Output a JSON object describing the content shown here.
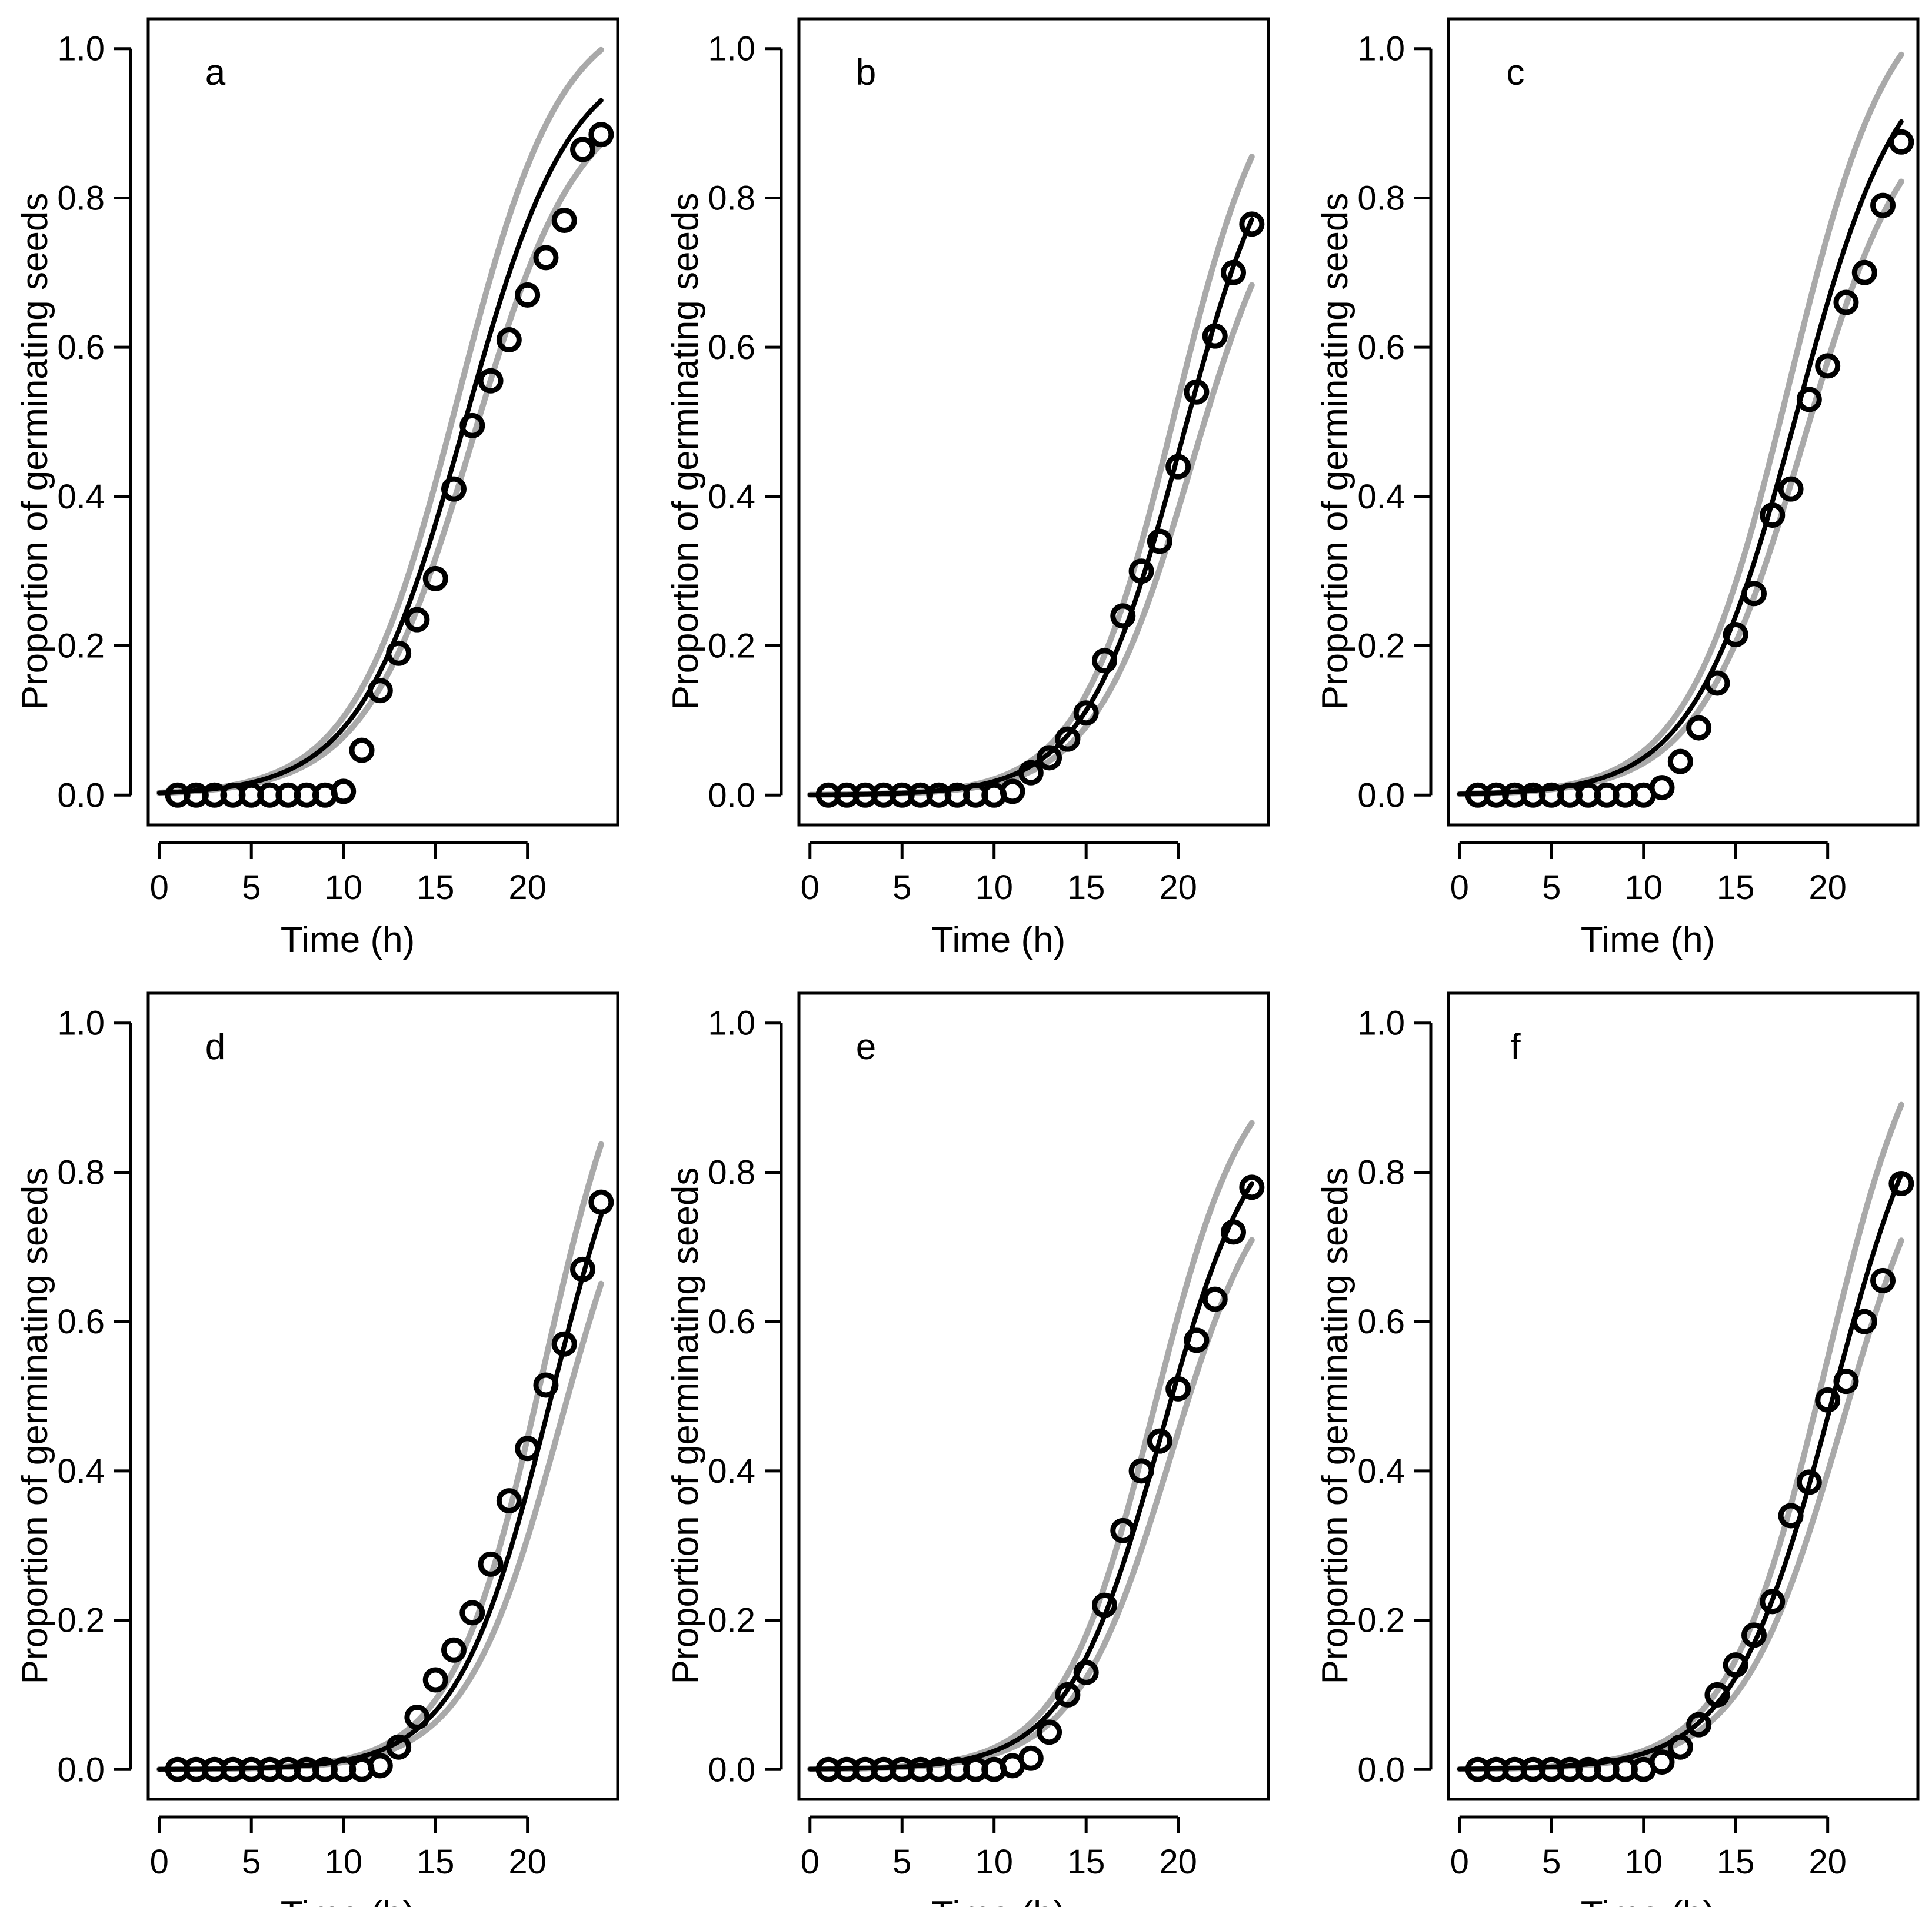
{
  "figure": {
    "colors": {
      "axis": "#000000",
      "fit": "#000000",
      "ci": "#a9a9a9",
      "points": "#000000",
      "background": "#ffffff"
    }
  },
  "chart_data": [
    {
      "panel": "a",
      "type": "line",
      "title": "",
      "xlabel": "Time (h)",
      "ylabel": "Proportion of germinating seeds",
      "xlim": [
        -0.6,
        24.9
      ],
      "ylim": [
        -0.04,
        1.04
      ],
      "xticks": [
        0,
        5,
        10,
        15,
        20
      ],
      "yticks": [
        0.0,
        0.2,
        0.4,
        0.6,
        0.8,
        1.0
      ],
      "ytick_labels": [
        "0.0",
        "0.2",
        "0.4",
        "0.6",
        "0.8",
        "1.0"
      ],
      "grid": false,
      "series": [
        {
          "name": "observed",
          "style": "points",
          "x": [
            1,
            2,
            3,
            4,
            5,
            6,
            7,
            8,
            9,
            10,
            11,
            12,
            13,
            14,
            15,
            16,
            17,
            18,
            19,
            20,
            21,
            22,
            23,
            24
          ],
          "values": [
            0,
            0,
            0,
            0,
            0,
            0,
            0,
            0,
            0,
            0.005,
            0.06,
            0.14,
            0.19,
            0.235,
            0.29,
            0.41,
            0.495,
            0.555,
            0.61,
            0.67,
            0.72,
            0.77,
            0.865,
            0.885
          ]
        },
        {
          "name": "fit",
          "style": "line",
          "model": "logistic",
          "params": {
            "asym": 1.0,
            "mid": 16.6,
            "scale": 2.85
          }
        },
        {
          "name": "upper",
          "style": "line",
          "model": "logistic",
          "params": {
            "asym": 1.06,
            "mid": 16.2,
            "scale": 2.8
          }
        },
        {
          "name": "lower",
          "style": "line",
          "model": "logistic",
          "params": {
            "asym": 0.95,
            "mid": 17.0,
            "scale": 2.9
          }
        }
      ]
    },
    {
      "panel": "b",
      "type": "line",
      "title": "",
      "xlabel": "Time (h)",
      "ylabel": "Proportion of germinating seeds",
      "xlim": [
        -0.6,
        24.9
      ],
      "ylim": [
        -0.04,
        1.04
      ],
      "xticks": [
        0,
        5,
        10,
        15,
        20
      ],
      "yticks": [
        0.0,
        0.2,
        0.4,
        0.6,
        0.8,
        1.0
      ],
      "ytick_labels": [
        "0.0",
        "0.2",
        "0.4",
        "0.6",
        "0.8",
        "1.0"
      ],
      "grid": false,
      "series": [
        {
          "name": "observed",
          "style": "points",
          "x": [
            1,
            2,
            3,
            4,
            5,
            6,
            7,
            8,
            9,
            10,
            11,
            12,
            13,
            14,
            15,
            16,
            17,
            18,
            19,
            20,
            21,
            22,
            23,
            24
          ],
          "values": [
            0,
            0,
            0,
            0,
            0,
            0,
            0,
            0,
            0,
            0,
            0.005,
            0.03,
            0.05,
            0.075,
            0.11,
            0.18,
            0.24,
            0.3,
            0.34,
            0.44,
            0.54,
            0.615,
            0.7,
            0.765
          ]
        },
        {
          "name": "fit",
          "style": "line",
          "model": "logistic",
          "params": {
            "asym": 0.95,
            "mid": 20.2,
            "scale": 2.6
          }
        },
        {
          "name": "upper",
          "style": "line",
          "model": "logistic",
          "params": {
            "asym": 1.02,
            "mid": 19.8,
            "scale": 2.55
          }
        },
        {
          "name": "lower",
          "style": "line",
          "model": "logistic",
          "params": {
            "asym": 0.88,
            "mid": 20.7,
            "scale": 2.65
          }
        }
      ]
    },
    {
      "panel": "c",
      "type": "line",
      "title": "",
      "xlabel": "Time (h)",
      "ylabel": "Proportion of germinating seeds",
      "xlim": [
        -0.6,
        24.9
      ],
      "ylim": [
        -0.04,
        1.04
      ],
      "xticks": [
        0,
        5,
        10,
        15,
        20
      ],
      "yticks": [
        0.0,
        0.2,
        0.4,
        0.6,
        0.8,
        1.0
      ],
      "ytick_labels": [
        "0.0",
        "0.2",
        "0.4",
        "0.6",
        "0.8",
        "1.0"
      ],
      "grid": false,
      "series": [
        {
          "name": "observed",
          "style": "points",
          "x": [
            1,
            2,
            3,
            4,
            5,
            6,
            7,
            8,
            9,
            10,
            11,
            12,
            13,
            14,
            15,
            16,
            17,
            18,
            19,
            20,
            21,
            22,
            23,
            24
          ],
          "values": [
            0,
            0,
            0,
            0,
            0,
            0,
            0,
            0,
            0,
            0,
            0.01,
            0.045,
            0.09,
            0.15,
            0.215,
            0.27,
            0.375,
            0.41,
            0.53,
            0.575,
            0.66,
            0.7,
            0.79,
            0.875
          ]
        },
        {
          "name": "fit",
          "style": "line",
          "model": "logistic",
          "params": {
            "asym": 1.02,
            "mid": 18.3,
            "scale": 2.8
          }
        },
        {
          "name": "upper",
          "style": "line",
          "model": "logistic",
          "params": {
            "asym": 1.1,
            "mid": 17.9,
            "scale": 2.75
          }
        },
        {
          "name": "lower",
          "style": "line",
          "model": "logistic",
          "params": {
            "asym": 0.95,
            "mid": 18.7,
            "scale": 2.85
          }
        }
      ]
    },
    {
      "panel": "d",
      "type": "line",
      "title": "",
      "xlabel": "Time (h)",
      "ylabel": "Proportion of germinating seeds",
      "xlim": [
        -0.6,
        24.9
      ],
      "ylim": [
        -0.04,
        1.04
      ],
      "xticks": [
        0,
        5,
        10,
        15,
        20
      ],
      "yticks": [
        0.0,
        0.2,
        0.4,
        0.6,
        0.8,
        1.0
      ],
      "ytick_labels": [
        "0.0",
        "0.2",
        "0.4",
        "0.6",
        "0.8",
        "1.0"
      ],
      "grid": false,
      "series": [
        {
          "name": "observed",
          "style": "points",
          "x": [
            1,
            2,
            3,
            4,
            5,
            6,
            7,
            8,
            9,
            10,
            11,
            12,
            13,
            14,
            15,
            16,
            17,
            18,
            19,
            20,
            21,
            22,
            23,
            24
          ],
          "values": [
            0,
            0,
            0,
            0,
            0,
            0,
            0,
            0,
            0,
            0,
            0,
            0.005,
            0.03,
            0.07,
            0.12,
            0.16,
            0.21,
            0.275,
            0.36,
            0.43,
            0.515,
            0.57,
            0.67,
            0.76
          ]
        },
        {
          "name": "fit",
          "style": "line",
          "model": "logistic",
          "params": {
            "asym": 1.0,
            "mid": 21.3,
            "scale": 2.55
          }
        },
        {
          "name": "upper",
          "style": "line",
          "model": "logistic",
          "params": {
            "asym": 1.08,
            "mid": 20.9,
            "scale": 2.5
          }
        },
        {
          "name": "lower",
          "style": "line",
          "model": "logistic",
          "params": {
            "asym": 0.93,
            "mid": 21.8,
            "scale": 2.6
          }
        }
      ]
    },
    {
      "panel": "e",
      "type": "line",
      "title": "",
      "xlabel": "Time (h)",
      "ylabel": "Proportion of germinating seeds",
      "xlim": [
        -0.6,
        24.9
      ],
      "ylim": [
        -0.04,
        1.04
      ],
      "xticks": [
        0,
        5,
        10,
        15,
        20
      ],
      "yticks": [
        0.0,
        0.2,
        0.4,
        0.6,
        0.8,
        1.0
      ],
      "ytick_labels": [
        "0.0",
        "0.2",
        "0.4",
        "0.6",
        "0.8",
        "1.0"
      ],
      "grid": false,
      "series": [
        {
          "name": "observed",
          "style": "points",
          "x": [
            1,
            2,
            3,
            4,
            5,
            6,
            7,
            8,
            9,
            10,
            11,
            12,
            13,
            14,
            15,
            16,
            17,
            18,
            19,
            20,
            21,
            22,
            23,
            24
          ],
          "values": [
            0,
            0,
            0,
            0,
            0,
            0,
            0,
            0,
            0,
            0,
            0.005,
            0.015,
            0.05,
            0.1,
            0.13,
            0.22,
            0.32,
            0.4,
            0.44,
            0.51,
            0.575,
            0.63,
            0.72,
            0.78
          ]
        },
        {
          "name": "fit",
          "style": "line",
          "model": "logistic",
          "params": {
            "asym": 0.9,
            "mid": 19.1,
            "scale": 2.55
          }
        },
        {
          "name": "upper",
          "style": "line",
          "model": "logistic",
          "params": {
            "asym": 0.97,
            "mid": 18.7,
            "scale": 2.5
          }
        },
        {
          "name": "lower",
          "style": "line",
          "model": "logistic",
          "params": {
            "asym": 0.84,
            "mid": 19.6,
            "scale": 2.6
          }
        }
      ]
    },
    {
      "panel": "f",
      "type": "line",
      "title": "",
      "xlabel": "Time (h)",
      "ylabel": "Proportion of germinating seeds",
      "xlim": [
        -0.6,
        24.9
      ],
      "ylim": [
        -0.04,
        1.04
      ],
      "xticks": [
        0,
        5,
        10,
        15,
        20
      ],
      "yticks": [
        0.0,
        0.2,
        0.4,
        0.6,
        0.8,
        1.0
      ],
      "ytick_labels": [
        "0.0",
        "0.2",
        "0.4",
        "0.6",
        "0.8",
        "1.0"
      ],
      "grid": false,
      "series": [
        {
          "name": "observed",
          "style": "points",
          "x": [
            1,
            2,
            3,
            4,
            5,
            6,
            7,
            8,
            9,
            10,
            11,
            12,
            13,
            14,
            15,
            16,
            17,
            18,
            19,
            20,
            21,
            22,
            23,
            24
          ],
          "values": [
            0,
            0,
            0,
            0,
            0,
            0,
            0,
            0,
            0,
            0,
            0.01,
            0.03,
            0.06,
            0.1,
            0.14,
            0.18,
            0.225,
            0.34,
            0.385,
            0.495,
            0.52,
            0.6,
            0.655,
            0.785
          ]
        },
        {
          "name": "fit",
          "style": "line",
          "model": "logistic",
          "params": {
            "asym": 1.0,
            "mid": 20.3,
            "scale": 2.7
          }
        },
        {
          "name": "upper",
          "style": "line",
          "model": "logistic",
          "params": {
            "asym": 1.08,
            "mid": 19.9,
            "scale": 2.65
          }
        },
        {
          "name": "lower",
          "style": "line",
          "model": "logistic",
          "params": {
            "asym": 0.93,
            "mid": 20.8,
            "scale": 2.75
          }
        }
      ]
    }
  ]
}
